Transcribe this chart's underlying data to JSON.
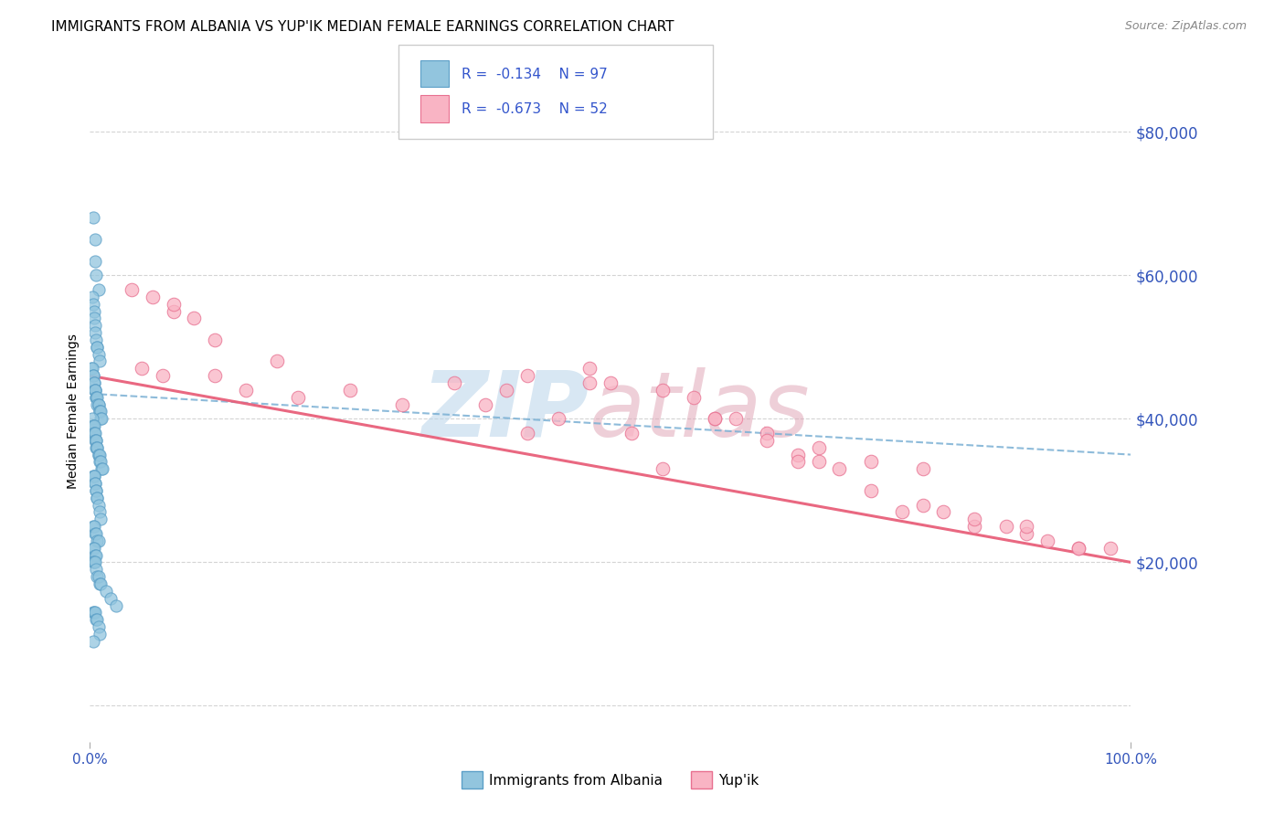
{
  "title": "IMMIGRANTS FROM ALBANIA VS YUP'IK MEDIAN FEMALE EARNINGS CORRELATION CHART",
  "source": "Source: ZipAtlas.com",
  "ylabel": "Median Female Earnings",
  "xmin": 0.0,
  "xmax": 100.0,
  "ymin": -5000,
  "ymax": 87000,
  "yticks": [
    0,
    20000,
    40000,
    60000,
    80000
  ],
  "ytick_labels_right": [
    "",
    "$20,000",
    "$40,000",
    "$60,000",
    "$80,000"
  ],
  "xticks": [
    0,
    100
  ],
  "xtick_labels": [
    "0.0%",
    "100.0%"
  ],
  "albania_color": "#92c5de",
  "albania_edge": "#5b9fc7",
  "yupik_color": "#f9b4c4",
  "yupik_edge": "#e87090",
  "trendline_albania_color": "#7ab0d4",
  "trendline_yupik_color": "#e8607a",
  "watermark_ZIP_color": "#b8d4ea",
  "watermark_atlas_color": "#e0a8b8",
  "legend_box_color": "#eeeeee",
  "legend_text_color": "#3355cc",
  "axis_color": "#3355bb",
  "grid_color": "#d0d0d0",
  "background_color": "#ffffff",
  "title_fontsize": 11,
  "label_fontsize": 10,
  "tick_fontsize": 11,
  "albania_scatter_x": [
    0.3,
    0.5,
    0.5,
    0.6,
    0.8,
    0.2,
    0.3,
    0.4,
    0.4,
    0.5,
    0.5,
    0.6,
    0.7,
    0.7,
    0.8,
    0.9,
    0.1,
    0.2,
    0.3,
    0.3,
    0.4,
    0.4,
    0.5,
    0.5,
    0.5,
    0.6,
    0.6,
    0.7,
    0.7,
    0.8,
    0.8,
    0.9,
    0.9,
    1.0,
    1.0,
    1.1,
    0.2,
    0.3,
    0.3,
    0.4,
    0.4,
    0.4,
    0.5,
    0.5,
    0.6,
    0.6,
    0.6,
    0.7,
    0.7,
    0.8,
    0.8,
    0.9,
    0.9,
    1.0,
    1.1,
    1.2,
    0.3,
    0.4,
    0.4,
    0.5,
    0.5,
    0.6,
    0.6,
    0.7,
    0.7,
    0.8,
    0.9,
    1.0,
    0.3,
    0.4,
    0.5,
    0.6,
    0.7,
    0.8,
    0.3,
    0.4,
    0.5,
    0.6,
    0.3,
    0.4,
    0.5,
    0.6,
    0.7,
    0.8,
    0.9,
    1.0,
    1.5,
    2.0,
    2.5,
    0.3,
    0.4,
    0.5,
    0.6,
    0.7,
    0.8,
    0.9,
    0.3
  ],
  "albania_scatter_y": [
    68000,
    65000,
    62000,
    60000,
    58000,
    57000,
    56000,
    55000,
    54000,
    53000,
    52000,
    51000,
    50000,
    50000,
    49000,
    48000,
    47000,
    47000,
    46000,
    46000,
    45000,
    45000,
    44000,
    44000,
    44000,
    43000,
    43000,
    43000,
    42000,
    42000,
    42000,
    41000,
    41000,
    41000,
    40000,
    40000,
    40000,
    39000,
    39000,
    39000,
    38000,
    38000,
    38000,
    37000,
    37000,
    37000,
    36000,
    36000,
    36000,
    35000,
    35000,
    35000,
    34000,
    34000,
    33000,
    33000,
    32000,
    32000,
    32000,
    31000,
    31000,
    30000,
    30000,
    29000,
    29000,
    28000,
    27000,
    26000,
    25000,
    25000,
    24000,
    24000,
    23000,
    23000,
    22000,
    22000,
    21000,
    21000,
    20000,
    20000,
    20000,
    19000,
    18000,
    18000,
    17000,
    17000,
    16000,
    15000,
    14000,
    13000,
    13000,
    13000,
    12000,
    12000,
    11000,
    10000,
    9000
  ],
  "yupik_scatter_x": [
    4.0,
    6.0,
    8.0,
    10.0,
    5.0,
    7.0,
    12.0,
    15.0,
    20.0,
    25.0,
    30.0,
    8.0,
    12.0,
    18.0,
    35.0,
    40.0,
    42.0,
    48.0,
    50.0,
    55.0,
    58.0,
    60.0,
    62.0,
    65.0,
    68.0,
    70.0,
    72.0,
    75.0,
    78.0,
    80.0,
    82.0,
    85.0,
    88.0,
    90.0,
    92.0,
    95.0,
    98.0,
    55.0,
    48.0,
    42.0,
    60.0,
    65.0,
    70.0,
    75.0,
    80.0,
    85.0,
    90.0,
    95.0,
    38.0,
    45.0,
    52.0,
    68.0
  ],
  "yupik_scatter_y": [
    58000,
    57000,
    55000,
    54000,
    47000,
    46000,
    46000,
    44000,
    43000,
    44000,
    42000,
    56000,
    51000,
    48000,
    45000,
    44000,
    46000,
    47000,
    45000,
    44000,
    43000,
    40000,
    40000,
    38000,
    35000,
    34000,
    33000,
    30000,
    27000,
    28000,
    27000,
    25000,
    25000,
    24000,
    23000,
    22000,
    22000,
    33000,
    45000,
    38000,
    40000,
    37000,
    36000,
    34000,
    33000,
    26000,
    25000,
    22000,
    42000,
    40000,
    38000,
    34000
  ],
  "albania_trend_x": [
    0,
    100
  ],
  "albania_trend_y": [
    43500,
    35000
  ],
  "yupik_trend_x": [
    0,
    100
  ],
  "yupik_trend_y": [
    46000,
    20000
  ]
}
